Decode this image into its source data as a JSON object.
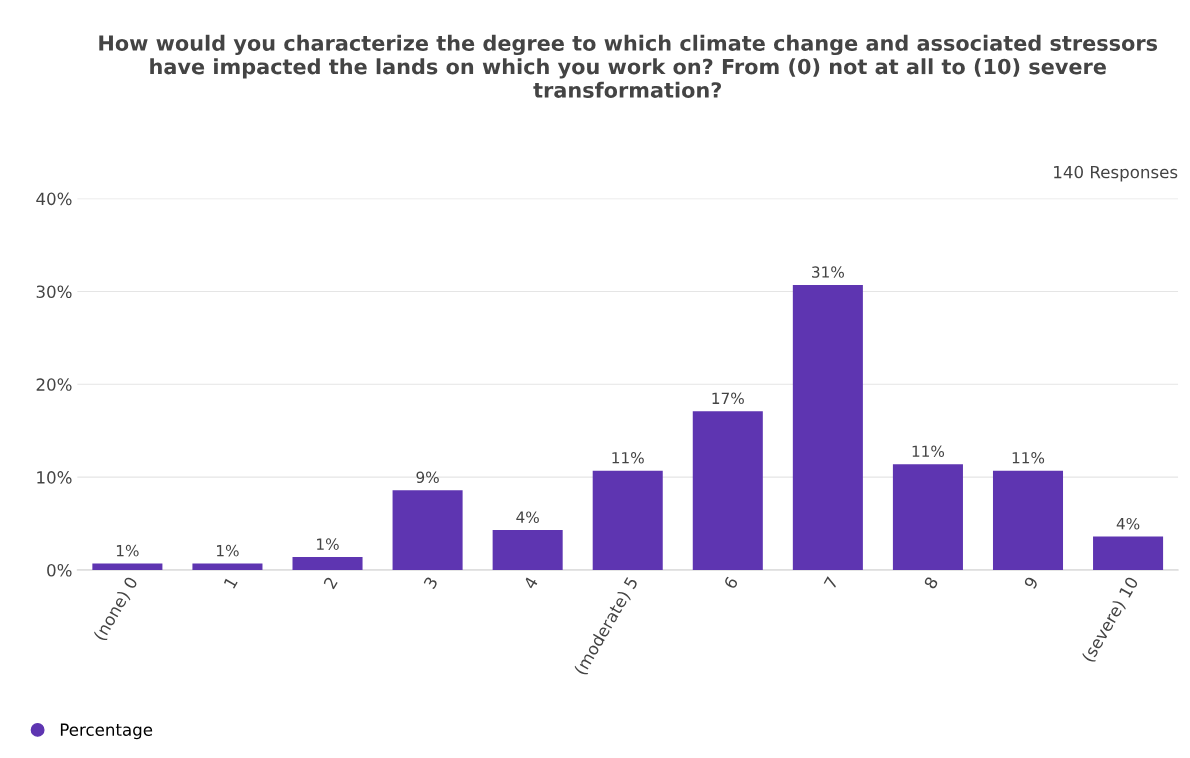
{
  "chart_data": {
    "type": "bar",
    "title": "How would you characterize the degree to which climate change and associated stressors have impacted the lands on which you work on? From (0) not at all to (10) severe transformation?",
    "annotations": [
      "140 Responses"
    ],
    "categories": [
      "(none) 0",
      "1",
      "2",
      "3",
      "4",
      "(moderate) 5",
      "6",
      "7",
      "8",
      "9",
      "(severe) 10"
    ],
    "series": [
      {
        "name": "Percentage",
        "color": "#5e35b1",
        "values": [
          0.7,
          0.7,
          1.4,
          8.6,
          4.3,
          10.7,
          17.1,
          30.7,
          11.4,
          10.7,
          3.6
        ],
        "value_labels": [
          "1%",
          "1%",
          "1%",
          "9%",
          "4%",
          "11%",
          "17%",
          "31%",
          "11%",
          "11%",
          "4%"
        ]
      }
    ],
    "ylim": [
      0,
      40
    ],
    "yticks": [
      {
        "value": 0,
        "label": "0%"
      },
      {
        "value": 10,
        "label": "10%"
      },
      {
        "value": 20,
        "label": "20%"
      },
      {
        "value": 30,
        "label": "30%"
      },
      {
        "value": 40,
        "label": "40%"
      }
    ],
    "grid": "y",
    "legend": "bottom left"
  }
}
